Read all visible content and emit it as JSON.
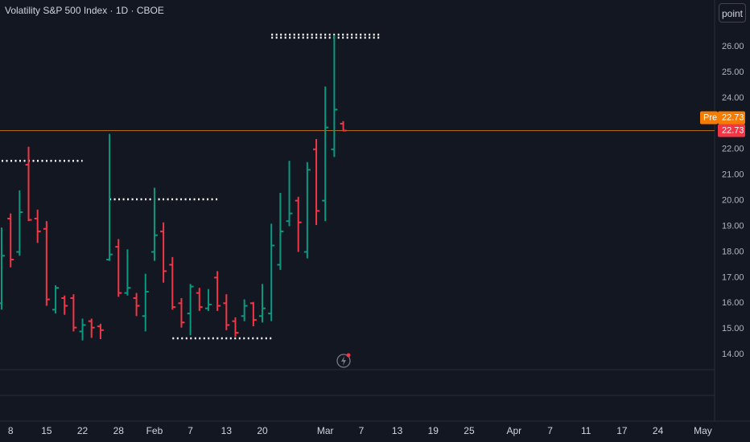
{
  "chart_data": {
    "type": "ohlc",
    "title": "Volatility S&P 500 Index · 1D · CBOE",
    "up_color": "#089981",
    "down_color": "#f23645",
    "open": [
      16.0,
      19.3,
      18.0,
      21.4,
      19.3,
      18.9,
      15.75,
      16.2,
      16.2,
      14.9,
      15.3,
      15.1,
      17.7,
      18.2,
      16.4,
      16.2,
      15.5,
      18.0,
      18.8,
      17.5,
      16.0,
      15.6,
      16.4,
      15.8,
      17.0,
      16.0,
      15.3,
      15.5,
      16.0,
      15.5,
      15.6,
      17.5,
      19.2,
      20.0,
      18.0,
      22.0,
      20.0,
      22.0,
      23.0
    ],
    "high": [
      18.95,
      19.5,
      20.4,
      22.1,
      19.65,
      19.2,
      16.7,
      16.3,
      16.35,
      15.4,
      15.4,
      15.2,
      22.6,
      18.5,
      18.1,
      16.4,
      17.15,
      20.5,
      19.15,
      17.8,
      16.2,
      16.75,
      16.6,
      16.55,
      17.25,
      16.35,
      15.45,
      16.15,
      16.05,
      16.75,
      19.1,
      20.3,
      21.55,
      20.15,
      21.5,
      22.4,
      24.45,
      26.45,
      23.1
    ],
    "low": [
      15.75,
      17.4,
      17.85,
      19.2,
      18.35,
      15.9,
      15.6,
      15.55,
      14.9,
      14.55,
      14.65,
      14.6,
      17.65,
      16.25,
      16.3,
      15.5,
      14.9,
      17.65,
      16.8,
      15.75,
      15.05,
      14.75,
      15.7,
      15.7,
      15.7,
      14.95,
      14.7,
      15.3,
      15.1,
      15.25,
      15.3,
      17.3,
      19.0,
      18.0,
      17.75,
      19.05,
      19.2,
      21.7,
      22.7
    ],
    "close": [
      17.85,
      17.7,
      19.55,
      19.25,
      18.8,
      16.15,
      16.6,
      15.9,
      15.05,
      15.15,
      15.05,
      14.95,
      17.9,
      16.4,
      16.6,
      15.9,
      16.45,
      18.65,
      17.25,
      15.85,
      15.25,
      16.65,
      15.85,
      15.95,
      15.9,
      15.15,
      14.85,
      15.9,
      15.35,
      15.8,
      18.25,
      18.8,
      19.5,
      19.15,
      21.2,
      19.6,
      22.85,
      23.55,
      22.73
    ],
    "levels": [
      {
        "value": 21.55,
        "start": 0,
        "end": 9
      },
      {
        "value": 20.05,
        "start": 12,
        "end": 24
      },
      {
        "value": 14.63,
        "start": 19,
        "end": 30
      },
      {
        "value": 26.47,
        "start": 30,
        "end": 42
      },
      {
        "value": 26.35,
        "start": 30,
        "end": 42
      }
    ],
    "last_price": 22.73,
    "premarket": {
      "label": "Pre",
      "value": 22.73
    },
    "xlim": [
      -0.18,
      79.3
    ],
    "xticks": [
      {
        "value": 1,
        "label": "8"
      },
      {
        "value": 5,
        "label": "15"
      },
      {
        "value": 9,
        "label": "22"
      },
      {
        "value": 13,
        "label": "28"
      },
      {
        "value": 17,
        "label": "Feb"
      },
      {
        "value": 21,
        "label": "7"
      },
      {
        "value": 25,
        "label": "13"
      },
      {
        "value": 29,
        "label": "20"
      },
      {
        "value": 36,
        "label": "Mar"
      },
      {
        "value": 40,
        "label": "7"
      },
      {
        "value": 44,
        "label": "13"
      },
      {
        "value": 48,
        "label": "19"
      },
      {
        "value": 52,
        "label": "25"
      },
      {
        "value": 57,
        "label": "Apr"
      },
      {
        "value": 61,
        "label": "7"
      },
      {
        "value": 65,
        "label": "11"
      },
      {
        "value": 69,
        "label": "17"
      },
      {
        "value": 73,
        "label": "24"
      },
      {
        "value": 78,
        "label": "May"
      }
    ],
    "ylim": [
      13.41,
      27.82
    ],
    "yticks": [
      {
        "value": 14,
        "label": "14.00"
      },
      {
        "value": 15,
        "label": "15.00"
      },
      {
        "value": 16,
        "label": "16.00"
      },
      {
        "value": 17,
        "label": "17.00"
      },
      {
        "value": 18,
        "label": "18.00"
      },
      {
        "value": 19,
        "label": "19.00"
      },
      {
        "value": 20,
        "label": "20.00"
      },
      {
        "value": 21,
        "label": "21.00"
      },
      {
        "value": 22,
        "label": "22.00"
      },
      {
        "value": 24,
        "label": "24.00"
      },
      {
        "value": 25,
        "label": "25.00"
      },
      {
        "value": 26,
        "label": "26.00"
      }
    ]
  },
  "toolbar": {
    "button": "point"
  }
}
